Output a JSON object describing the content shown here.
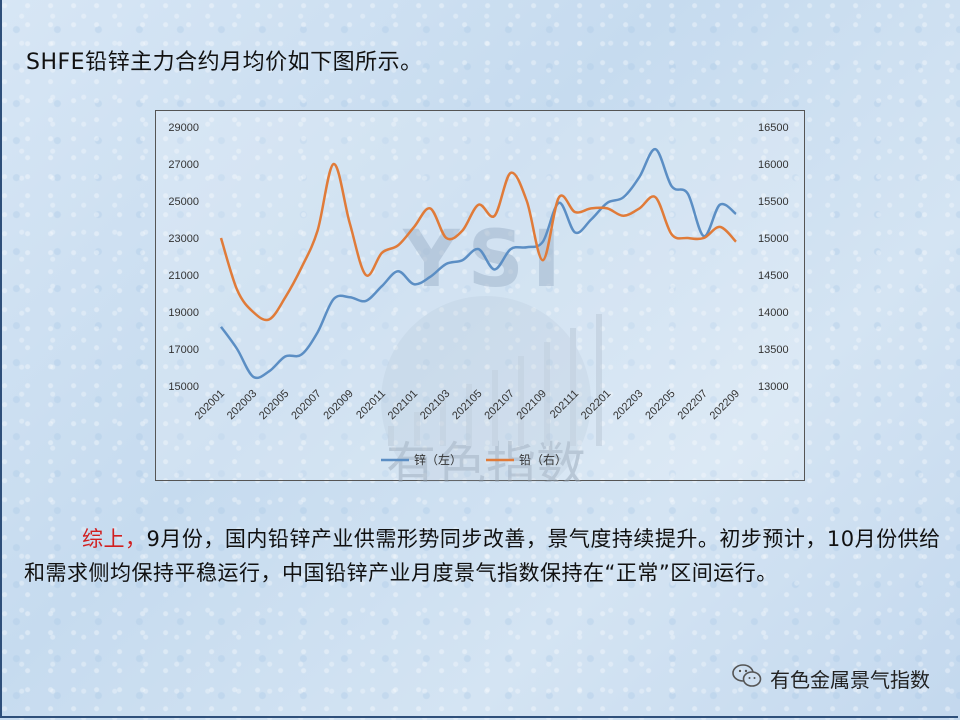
{
  "intro": "SHFE铅锌主力合约月均价如下图所示。",
  "chart_data": {
    "type": "line",
    "x": [
      "202001",
      "202002",
      "202003",
      "202004",
      "202005",
      "202006",
      "202007",
      "202008",
      "202009",
      "202010",
      "202011",
      "202012",
      "202101",
      "202102",
      "202103",
      "202104",
      "202105",
      "202106",
      "202107",
      "202108",
      "202109",
      "202110",
      "202111",
      "202112",
      "202201",
      "202202",
      "202203",
      "202204",
      "202205",
      "202206",
      "202207",
      "202208",
      "202209"
    ],
    "xtick_labels": [
      "202001",
      "202003",
      "202005",
      "202007",
      "202009",
      "202011",
      "202101",
      "202103",
      "202105",
      "202107",
      "202109",
      "202111",
      "202201",
      "202203",
      "202205",
      "202207",
      "202209"
    ],
    "series": [
      {
        "name": "锌（左）",
        "axis": "left",
        "color": "#5b8ec4",
        "values": [
          18200,
          17000,
          15500,
          15800,
          16600,
          16700,
          17900,
          19700,
          19800,
          19600,
          20400,
          21200,
          20500,
          20900,
          21600,
          21800,
          22400,
          21300,
          22400,
          22500,
          22800,
          24900,
          23300,
          24000,
          24900,
          25200,
          26300,
          27800,
          25800,
          25400,
          23100,
          24800,
          24300
        ]
      },
      {
        "name": "铅（右）",
        "axis": "right",
        "color": "#e07b39",
        "values": [
          15000,
          14300,
          14000,
          13900,
          14200,
          14600,
          15100,
          16000,
          15200,
          14500,
          14800,
          14900,
          15150,
          15400,
          15000,
          15100,
          15450,
          15300,
          15880,
          15500,
          14700,
          15550,
          15350,
          15400,
          15400,
          15300,
          15400,
          15550,
          15050,
          15000,
          15000,
          15150,
          14950
        ]
      }
    ],
    "yleft": {
      "min": 15000,
      "max": 29000,
      "ticks": [
        15000,
        17000,
        19000,
        21000,
        23000,
        25000,
        27000,
        29000
      ]
    },
    "yright": {
      "min": 13000,
      "max": 16500,
      "ticks": [
        13000,
        13500,
        14000,
        14500,
        15000,
        15500,
        16000,
        16500
      ]
    },
    "legend": "bottom",
    "grid": false
  },
  "watermark": {
    "letters": "YSI",
    "text": "有色指数"
  },
  "paragraph": {
    "lead": "综上，",
    "body": "9月份，国内铅锌产业供需形势同步改善，景气度持续提升。初步预计，10月份供给和需求侧均保持平稳运行，中国铅锌产业月度景气指数保持在“正常”区间运行。"
  },
  "brand": {
    "icon": "wechat-icon",
    "text": "有色金属景气指数"
  }
}
